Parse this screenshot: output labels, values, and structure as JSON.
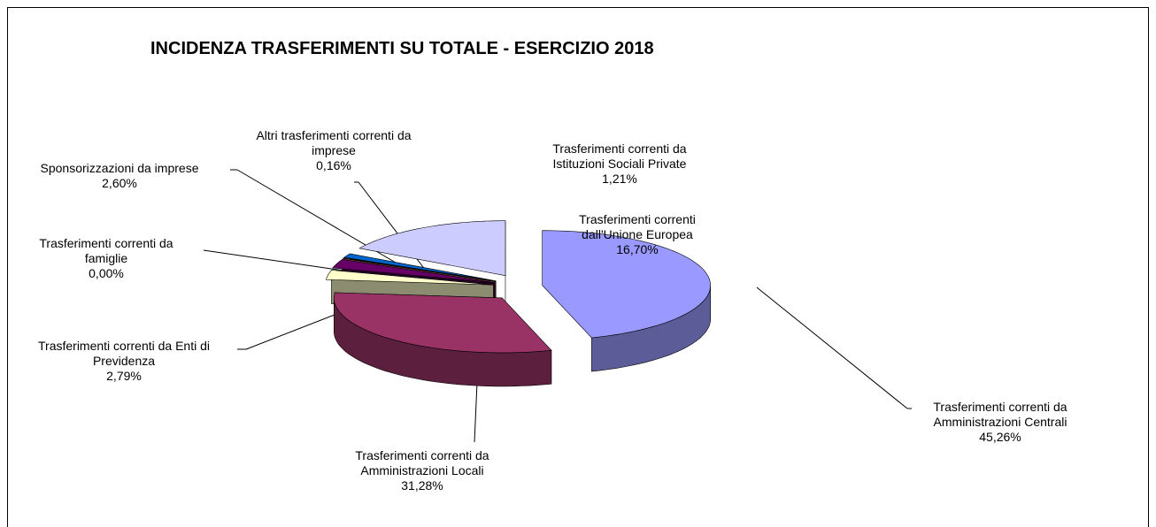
{
  "chart_data": {
    "type": "pie3d",
    "title": "INCIDENZA TRASFERIMENTI SU TOTALE - ESERCIZIO 2018",
    "categories": [
      "Trasferimenti correnti da Amministrazioni Centrali",
      "Trasferimenti correnti da Amministrazioni Locali",
      "Trasferimenti correnti da Enti di Previdenza",
      "Trasferimenti correnti da famiglie",
      "Sponsorizzazioni da imprese",
      "Altri trasferimenti correnti da imprese",
      "Trasferimenti correnti da Istituzioni Sociali Private",
      "Trasferimenti correnti dall'Unione Europea"
    ],
    "values": [
      45.26,
      31.28,
      2.79,
      0.0,
      2.6,
      0.16,
      1.21,
      16.7
    ],
    "value_labels": [
      "45,26%",
      "31,28%",
      "2,79%",
      "0,00%",
      "2,60%",
      "0,16%",
      "1,21%",
      "16,70%"
    ],
    "colors": [
      "#9999ff",
      "#993366",
      "#ffffcc",
      "#ccffff",
      "#660066",
      "#ff8080",
      "#0066cc",
      "#ccccff"
    ]
  }
}
